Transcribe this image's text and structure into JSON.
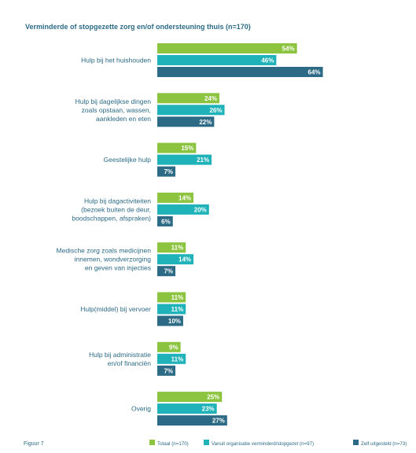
{
  "chart_data": {
    "type": "bar",
    "orientation": "horizontal",
    "title": "Verminderde of stopgezette zorg en/of ondersteuning thuis  (n=170)",
    "categories": [
      [
        "Hulp bij het huishouden"
      ],
      [
        "Hulp bij dagelijkse dingen",
        "zoals opstaan, wassen,",
        "aankleden en eten"
      ],
      [
        "Geestelijke hulp"
      ],
      [
        "Hulp bij dagactiviteiten",
        "(bezoek buiten de deur,",
        "boodschappen, afspraken)"
      ],
      [
        "Medische zorg zoals medicijnen",
        "innemen, wondverzorging",
        "en geven van injecties"
      ],
      [
        "Hulp(middel) bij vervoer"
      ],
      [
        "Hulp bij administratie",
        "en/of financiën"
      ],
      [
        "Overig"
      ]
    ],
    "series": [
      {
        "name": "Totaal (n=170)",
        "color": "#8cc43f",
        "values": [
          54,
          24,
          15,
          14,
          11,
          11,
          9,
          25
        ]
      },
      {
        "name": "Vanuit organisatie verminderd/stopgezet (n=97)",
        "color": "#1fb2b8",
        "values": [
          46,
          26,
          21,
          20,
          14,
          11,
          11,
          23
        ]
      },
      {
        "name": "Zelf uitgesteld (n=73)",
        "color": "#2c6a85",
        "values": [
          64,
          22,
          7,
          6,
          7,
          10,
          7,
          27
        ]
      }
    ],
    "value_suffix": "%",
    "xlim": [
      0,
      100
    ],
    "legend_position": "bottom",
    "grid": false,
    "footer_label": "Figuur 7"
  }
}
